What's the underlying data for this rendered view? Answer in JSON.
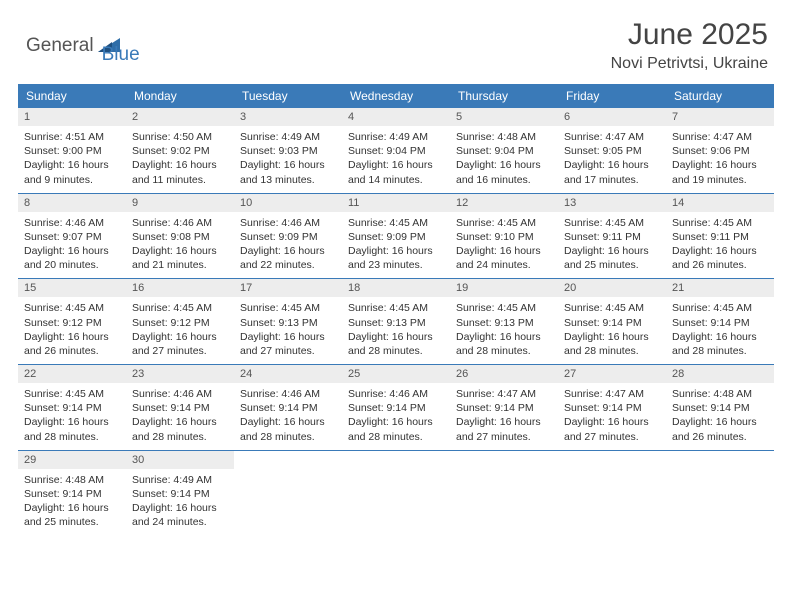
{
  "logo": {
    "text1": "General",
    "text2": "Blue",
    "shape_color": "#2f6ea8"
  },
  "header": {
    "title": "June 2025",
    "location": "Novi Petrivtsi, Ukraine"
  },
  "colors": {
    "header_bg": "#3a7ab8",
    "header_text": "#ffffff",
    "daynum_bg": "#ededed",
    "border": "#3a7ab8"
  },
  "day_names": [
    "Sunday",
    "Monday",
    "Tuesday",
    "Wednesday",
    "Thursday",
    "Friday",
    "Saturday"
  ],
  "weeks": [
    [
      {
        "n": "1",
        "sr": "4:51 AM",
        "ss": "9:00 PM",
        "dl": "16 hours and 9 minutes."
      },
      {
        "n": "2",
        "sr": "4:50 AM",
        "ss": "9:02 PM",
        "dl": "16 hours and 11 minutes."
      },
      {
        "n": "3",
        "sr": "4:49 AM",
        "ss": "9:03 PM",
        "dl": "16 hours and 13 minutes."
      },
      {
        "n": "4",
        "sr": "4:49 AM",
        "ss": "9:04 PM",
        "dl": "16 hours and 14 minutes."
      },
      {
        "n": "5",
        "sr": "4:48 AM",
        "ss": "9:04 PM",
        "dl": "16 hours and 16 minutes."
      },
      {
        "n": "6",
        "sr": "4:47 AM",
        "ss": "9:05 PM",
        "dl": "16 hours and 17 minutes."
      },
      {
        "n": "7",
        "sr": "4:47 AM",
        "ss": "9:06 PM",
        "dl": "16 hours and 19 minutes."
      }
    ],
    [
      {
        "n": "8",
        "sr": "4:46 AM",
        "ss": "9:07 PM",
        "dl": "16 hours and 20 minutes."
      },
      {
        "n": "9",
        "sr": "4:46 AM",
        "ss": "9:08 PM",
        "dl": "16 hours and 21 minutes."
      },
      {
        "n": "10",
        "sr": "4:46 AM",
        "ss": "9:09 PM",
        "dl": "16 hours and 22 minutes."
      },
      {
        "n": "11",
        "sr": "4:45 AM",
        "ss": "9:09 PM",
        "dl": "16 hours and 23 minutes."
      },
      {
        "n": "12",
        "sr": "4:45 AM",
        "ss": "9:10 PM",
        "dl": "16 hours and 24 minutes."
      },
      {
        "n": "13",
        "sr": "4:45 AM",
        "ss": "9:11 PM",
        "dl": "16 hours and 25 minutes."
      },
      {
        "n": "14",
        "sr": "4:45 AM",
        "ss": "9:11 PM",
        "dl": "16 hours and 26 minutes."
      }
    ],
    [
      {
        "n": "15",
        "sr": "4:45 AM",
        "ss": "9:12 PM",
        "dl": "16 hours and 26 minutes."
      },
      {
        "n": "16",
        "sr": "4:45 AM",
        "ss": "9:12 PM",
        "dl": "16 hours and 27 minutes."
      },
      {
        "n": "17",
        "sr": "4:45 AM",
        "ss": "9:13 PM",
        "dl": "16 hours and 27 minutes."
      },
      {
        "n": "18",
        "sr": "4:45 AM",
        "ss": "9:13 PM",
        "dl": "16 hours and 28 minutes."
      },
      {
        "n": "19",
        "sr": "4:45 AM",
        "ss": "9:13 PM",
        "dl": "16 hours and 28 minutes."
      },
      {
        "n": "20",
        "sr": "4:45 AM",
        "ss": "9:14 PM",
        "dl": "16 hours and 28 minutes."
      },
      {
        "n": "21",
        "sr": "4:45 AM",
        "ss": "9:14 PM",
        "dl": "16 hours and 28 minutes."
      }
    ],
    [
      {
        "n": "22",
        "sr": "4:45 AM",
        "ss": "9:14 PM",
        "dl": "16 hours and 28 minutes."
      },
      {
        "n": "23",
        "sr": "4:46 AM",
        "ss": "9:14 PM",
        "dl": "16 hours and 28 minutes."
      },
      {
        "n": "24",
        "sr": "4:46 AM",
        "ss": "9:14 PM",
        "dl": "16 hours and 28 minutes."
      },
      {
        "n": "25",
        "sr": "4:46 AM",
        "ss": "9:14 PM",
        "dl": "16 hours and 28 minutes."
      },
      {
        "n": "26",
        "sr": "4:47 AM",
        "ss": "9:14 PM",
        "dl": "16 hours and 27 minutes."
      },
      {
        "n": "27",
        "sr": "4:47 AM",
        "ss": "9:14 PM",
        "dl": "16 hours and 27 minutes."
      },
      {
        "n": "28",
        "sr": "4:48 AM",
        "ss": "9:14 PM",
        "dl": "16 hours and 26 minutes."
      }
    ],
    [
      {
        "n": "29",
        "sr": "4:48 AM",
        "ss": "9:14 PM",
        "dl": "16 hours and 25 minutes."
      },
      {
        "n": "30",
        "sr": "4:49 AM",
        "ss": "9:14 PM",
        "dl": "16 hours and 24 minutes."
      },
      null,
      null,
      null,
      null,
      null
    ]
  ],
  "labels": {
    "sunrise": "Sunrise: ",
    "sunset": "Sunset: ",
    "daylight": "Daylight: "
  }
}
